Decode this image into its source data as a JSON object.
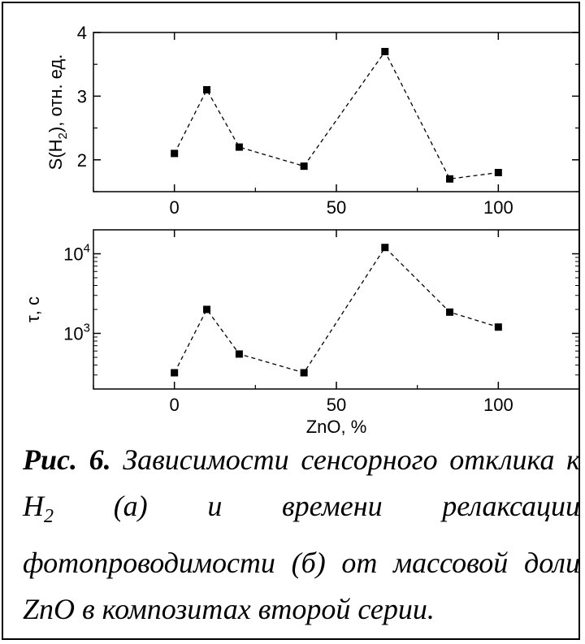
{
  "chart_data": [
    {
      "type": "line",
      "subtype": "scatter-dashed",
      "ylabel_parts": [
        "S(H",
        "2",
        "), отн. ед."
      ],
      "xlabel": "",
      "x": [
        0,
        10,
        20,
        40,
        65,
        85,
        100
      ],
      "y": [
        2.1,
        3.1,
        2.2,
        1.9,
        3.7,
        1.7,
        1.8
      ],
      "xlim": [
        -25,
        125
      ],
      "ylim": [
        1.5,
        4
      ],
      "xticks": [
        0,
        50,
        100
      ],
      "xtick_labels": [
        "0",
        "50",
        "100"
      ],
      "yticks": [
        2,
        3,
        4
      ],
      "ytick_labels": [
        "2",
        "3",
        "4"
      ],
      "grid": false,
      "legend": "none"
    },
    {
      "type": "line",
      "subtype": "scatter-dashed",
      "scale_y": "log",
      "ylabel": "τ, с",
      "xlabel": "ZnO, %",
      "x": [
        0,
        10,
        20,
        40,
        65,
        85,
        100
      ],
      "y": [
        320,
        2000,
        550,
        320,
        12000,
        1850,
        1200
      ],
      "xlim": [
        -25,
        125
      ],
      "ylim": [
        200,
        20000
      ],
      "xticks": [
        0,
        50,
        100
      ],
      "xtick_labels": [
        "0",
        "50",
        "100"
      ],
      "yticks": [
        1000,
        10000
      ],
      "ytick_labels": [
        {
          "base": "10",
          "exp": "3"
        },
        {
          "base": "10",
          "exp": "4"
        }
      ],
      "grid": false,
      "legend": "none"
    }
  ],
  "caption": {
    "label": "Рис. 6.",
    "text_before_sub": " Зависимости сенсорного отклика к H",
    "sub": "2",
    "text_after_sub": " (а) и времени релаксации фотопроводимости (б) от массовой доли ZnO в композитах второй серии."
  },
  "colors": {
    "axis": "#000000",
    "marker": "#000000",
    "background": "#ffffff"
  }
}
